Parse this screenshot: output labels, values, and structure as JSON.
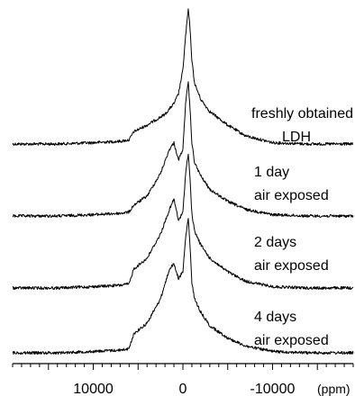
{
  "chart_data": {
    "type": "line",
    "title": "",
    "xlabel": "(ppm)",
    "ylabel": "",
    "x_reversed": true,
    "xlim": [
      19000,
      -19000
    ],
    "x_ticks": [
      10000,
      0,
      -10000
    ],
    "x_tick_labels": [
      "10000",
      "0",
      "-10000"
    ],
    "grid": false,
    "series": [
      {
        "label_lines": [
          "freshly obtained",
          "LDH"
        ],
        "label_anchor": "end",
        "x": [
          19000,
          14000,
          10000,
          7000,
          6000,
          5500,
          4000,
          2000,
          1000,
          500,
          0,
          -300,
          -600,
          -800,
          -1000,
          -1300,
          -2000,
          -3000,
          -5000,
          -7000,
          -10000,
          -14000,
          -19000
        ],
        "y": [
          0.0,
          0.0,
          0.01,
          0.02,
          0.03,
          0.09,
          0.14,
          0.22,
          0.3,
          0.37,
          0.55,
          0.8,
          1.0,
          0.85,
          0.62,
          0.45,
          0.33,
          0.24,
          0.14,
          0.06,
          0.01,
          0.0,
          0.0
        ]
      },
      {
        "label_lines": [
          "1 day",
          "air exposed"
        ],
        "label_anchor": "start",
        "x": [
          19000,
          14000,
          10000,
          7000,
          6000,
          5500,
          4000,
          2500,
          1500,
          1000,
          500,
          0,
          -300,
          -600,
          -800,
          -1000,
          -1300,
          -2000,
          -3000,
          -5000,
          -7000,
          -10000,
          -14000,
          -19000
        ],
        "y": [
          0.0,
          0.0,
          0.01,
          0.02,
          0.03,
          0.08,
          0.15,
          0.32,
          0.5,
          0.55,
          0.42,
          0.5,
          0.85,
          1.0,
          0.8,
          0.55,
          0.4,
          0.3,
          0.2,
          0.11,
          0.05,
          0.01,
          0.0,
          0.0
        ]
      },
      {
        "label_lines": [
          "2 days",
          "air exposed"
        ],
        "label_anchor": "start",
        "x": [
          19000,
          14000,
          10000,
          7000,
          6000,
          5500,
          4000,
          2500,
          1500,
          1000,
          500,
          0,
          -300,
          -600,
          -800,
          -1000,
          -1300,
          -2000,
          -3000,
          -5000,
          -7000,
          -10000,
          -14000,
          -19000
        ],
        "y": [
          0.0,
          0.0,
          0.01,
          0.02,
          0.03,
          0.14,
          0.22,
          0.4,
          0.58,
          0.66,
          0.5,
          0.56,
          0.85,
          1.0,
          0.8,
          0.55,
          0.42,
          0.32,
          0.22,
          0.12,
          0.05,
          0.01,
          0.0,
          0.0
        ]
      },
      {
        "label_lines": [
          "4 days",
          "air exposed"
        ],
        "label_anchor": "start",
        "x": [
          19000,
          14000,
          10000,
          7000,
          6000,
          5500,
          4000,
          2500,
          1500,
          1000,
          500,
          0,
          -300,
          -600,
          -800,
          -1000,
          -1300,
          -2000,
          -3000,
          -5000,
          -7000,
          -10000,
          -14000,
          -19000
        ],
        "y": [
          0.0,
          0.0,
          0.01,
          0.02,
          0.03,
          0.14,
          0.22,
          0.4,
          0.62,
          0.66,
          0.55,
          0.6,
          0.85,
          1.0,
          0.78,
          0.52,
          0.4,
          0.3,
          0.2,
          0.11,
          0.05,
          0.01,
          0.0,
          0.0
        ]
      }
    ]
  }
}
